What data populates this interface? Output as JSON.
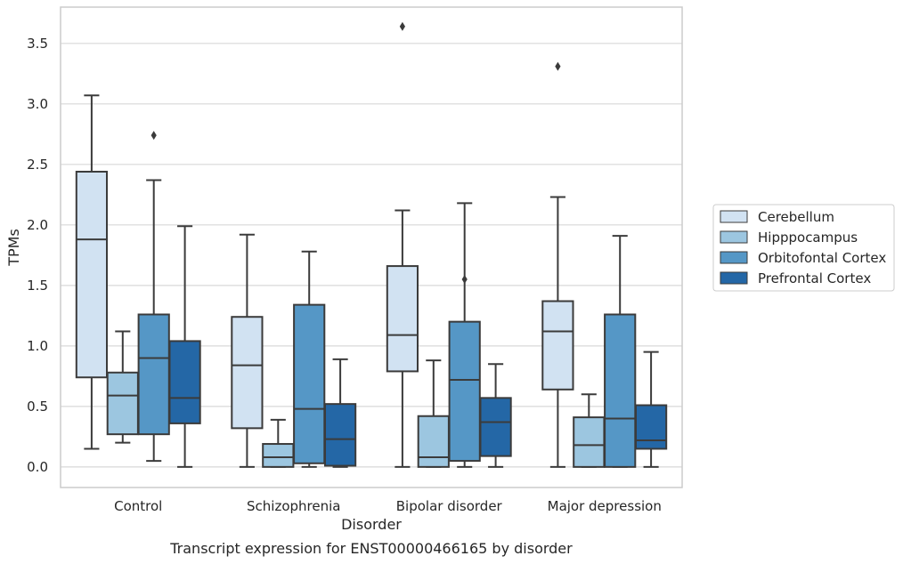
{
  "chart_data": {
    "type": "box",
    "caption": "Transcript expression for ENST00000466165 by disorder",
    "xlabel": "Disorder",
    "ylabel": "TPMs",
    "ylim": [
      -0.17,
      3.8
    ],
    "yticks": [
      "0.0",
      "0.5",
      "1.0",
      "1.5",
      "2.0",
      "2.5",
      "3.0",
      "3.5"
    ],
    "grid": true,
    "legend_position": "right",
    "categories": [
      "Control",
      "Schizophrenia",
      "Bipolar disorder",
      "Major depression"
    ],
    "series": [
      {
        "name": "Cerebellum",
        "color": "#d1e2f2",
        "boxes": [
          {
            "whislo": 0.15,
            "q1": 0.74,
            "med": 1.88,
            "q3": 2.44,
            "whishi": 3.07,
            "fliers": []
          },
          {
            "whislo": 0.0,
            "q1": 0.32,
            "med": 0.84,
            "q3": 1.24,
            "whishi": 1.92,
            "fliers": []
          },
          {
            "whislo": 0.0,
            "q1": 0.79,
            "med": 1.09,
            "q3": 1.66,
            "whishi": 2.12,
            "fliers": [
              3.64
            ]
          },
          {
            "whislo": 0.0,
            "q1": 0.64,
            "med": 1.12,
            "q3": 1.37,
            "whishi": 2.23,
            "fliers": [
              3.31
            ]
          }
        ]
      },
      {
        "name": "Hipppocampus",
        "color": "#9cc6e0",
        "boxes": [
          {
            "whislo": 0.2,
            "q1": 0.27,
            "med": 0.59,
            "q3": 0.78,
            "whishi": 1.12,
            "fliers": []
          },
          {
            "whislo": 0.0,
            "q1": 0.0,
            "med": 0.08,
            "q3": 0.19,
            "whishi": 0.39,
            "fliers": []
          },
          {
            "whislo": 0.0,
            "q1": 0.0,
            "med": 0.08,
            "q3": 0.42,
            "whishi": 0.88,
            "fliers": []
          },
          {
            "whislo": 0.0,
            "q1": 0.0,
            "med": 0.18,
            "q3": 0.41,
            "whishi": 0.6,
            "fliers": []
          }
        ]
      },
      {
        "name": "Orbitofontal Cortex",
        "color": "#5597c6",
        "boxes": [
          {
            "whislo": 0.05,
            "q1": 0.27,
            "med": 0.9,
            "q3": 1.26,
            "whishi": 2.37,
            "fliers": [
              2.74
            ]
          },
          {
            "whislo": 0.0,
            "q1": 0.03,
            "med": 0.48,
            "q3": 1.34,
            "whishi": 1.78,
            "fliers": []
          },
          {
            "whislo": 0.0,
            "q1": 0.05,
            "med": 0.72,
            "q3": 1.2,
            "whishi": 2.18,
            "fliers": [
              1.55
            ]
          },
          {
            "whislo": 0.0,
            "q1": 0.0,
            "med": 0.4,
            "q3": 1.26,
            "whishi": 1.91,
            "fliers": []
          }
        ]
      },
      {
        "name": "Prefrontal Cortex",
        "color": "#2467a6",
        "boxes": [
          {
            "whislo": 0.0,
            "q1": 0.36,
            "med": 0.57,
            "q3": 1.04,
            "whishi": 1.99,
            "fliers": []
          },
          {
            "whislo": 0.0,
            "q1": 0.01,
            "med": 0.23,
            "q3": 0.52,
            "whishi": 0.89,
            "fliers": []
          },
          {
            "whislo": 0.0,
            "q1": 0.09,
            "med": 0.37,
            "q3": 0.57,
            "whishi": 0.85,
            "fliers": []
          },
          {
            "whislo": 0.0,
            "q1": 0.15,
            "med": 0.22,
            "q3": 0.51,
            "whishi": 0.95,
            "fliers": []
          }
        ]
      }
    ]
  }
}
